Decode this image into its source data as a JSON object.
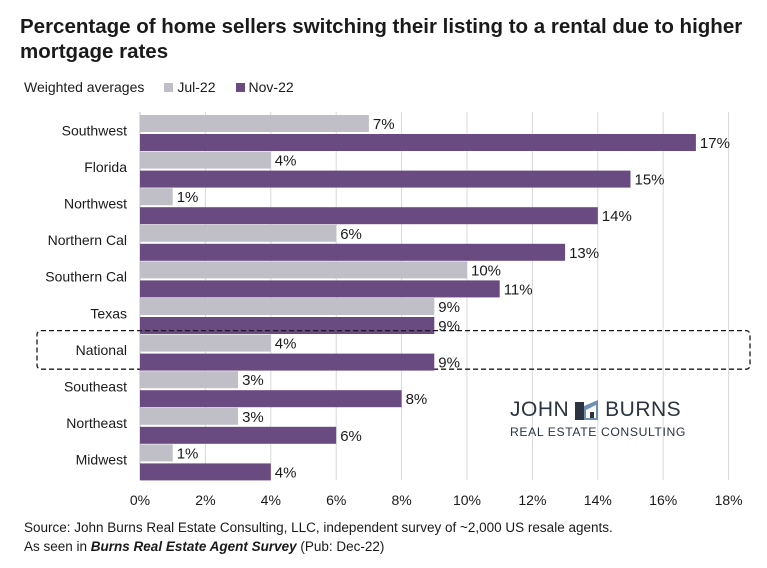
{
  "title": "Percentage of home sellers switching their listing to a rental due to higher mortgage rates",
  "legend": {
    "caption": "Weighted averages",
    "series_a": "Jul-22",
    "series_b": "Nov-22"
  },
  "colors": {
    "jul": "#c0bfc8",
    "nov": "#6a4b81",
    "grid": "#d9d9d9"
  },
  "logo": {
    "line1_left": "JOHN",
    "line1_right": "BURNS",
    "line2": "REAL ESTATE CONSULTING",
    "icon": "house-logo-icon"
  },
  "source": {
    "line1": "Source: John Burns Real Estate Consulting, LLC, independent survey of ~2,000 US resale agents.",
    "line2_prefix": "As seen in ",
    "line2_pub": "Burns Real Estate Agent Survey",
    "line2_suffix": " (Pub: Dec-22)"
  },
  "chart_data": {
    "type": "bar",
    "orientation": "horizontal",
    "categories": [
      "Southwest",
      "Florida",
      "Northwest",
      "Northern Cal",
      "Southern Cal",
      "Texas",
      "National",
      "Southeast",
      "Northeast",
      "Midwest"
    ],
    "series": [
      {
        "name": "Jul-22",
        "values": [
          7,
          4,
          1,
          6,
          10,
          9,
          4,
          3,
          3,
          1
        ]
      },
      {
        "name": "Nov-22",
        "values": [
          17,
          15,
          14,
          13,
          11,
          9,
          9,
          8,
          6,
          4
        ]
      }
    ],
    "value_labels": [
      [
        "7%",
        "4%",
        "1%",
        "6%",
        "10%",
        "9%",
        "4%",
        "3%",
        "3%",
        "1%"
      ],
      [
        "17%",
        "15%",
        "14%",
        "13%",
        "11%",
        "9%",
        "9%",
        "8%",
        "6%",
        "4%"
      ]
    ],
    "xlim": [
      0,
      18
    ],
    "xticks": [
      "0%",
      "2%",
      "4%",
      "6%",
      "8%",
      "10%",
      "12%",
      "14%",
      "16%",
      "18%"
    ],
    "highlighted_category": "National",
    "grid": "vertical"
  }
}
